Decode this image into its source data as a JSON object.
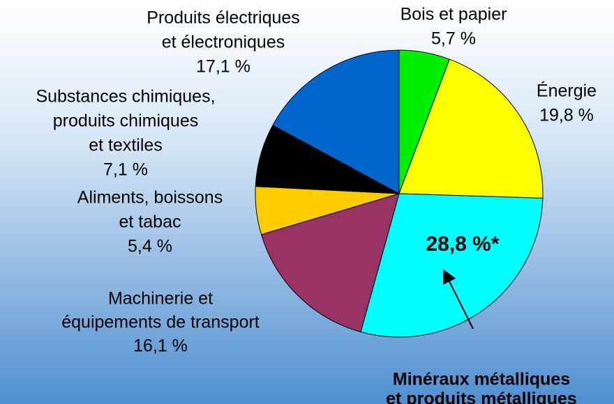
{
  "chart_data": {
    "type": "pie",
    "categories": [
      [
        "Bois et papier"
      ],
      [
        "Énergie"
      ],
      [
        "Minéraux métalliques",
        "et produits métalliques"
      ],
      [
        "Machinerie et",
        "équipements de transport"
      ],
      [
        "Aliments, boissons",
        "et tabac"
      ],
      [
        "Substances chimiques,",
        "produits chimiques",
        "et textiles"
      ],
      [
        "Produits électriques",
        "et électroniques"
      ]
    ],
    "values": [
      5.7,
      19.8,
      28.8,
      16.1,
      5.4,
      7.1,
      17.1
    ],
    "value_labels": [
      "5,7 %",
      "19,8 %",
      "28,8 %*",
      "16,1 %",
      "5,4 %",
      "7,1 %",
      "17,1 %"
    ],
    "colors": [
      "#00ee00",
      "#ffff00",
      "#00ffff",
      "#993366",
      "#ffcc00",
      "#000000",
      "#0066cc"
    ],
    "start_angle": 0,
    "direction": "clockwise"
  }
}
